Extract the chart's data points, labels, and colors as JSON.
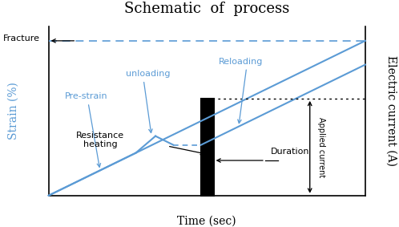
{
  "title": "Schematic  of  process",
  "xlabel": "Time (sec)",
  "ylabel_left": "Strain (%)",
  "ylabel_right": "Electric current (A)",
  "background_color": "#ffffff",
  "title_fontsize": 13,
  "label_fontsize": 10,
  "blue_color": "#5b9bd5",
  "fracture_label": "Fracture",
  "prestrain_label": "Pre-strain",
  "unloading_label": "unloading",
  "reloading_label": "Reloading",
  "resistance_label": "Resistance\nheating",
  "duration_label": "Duration",
  "applied_label": "Applied current"
}
